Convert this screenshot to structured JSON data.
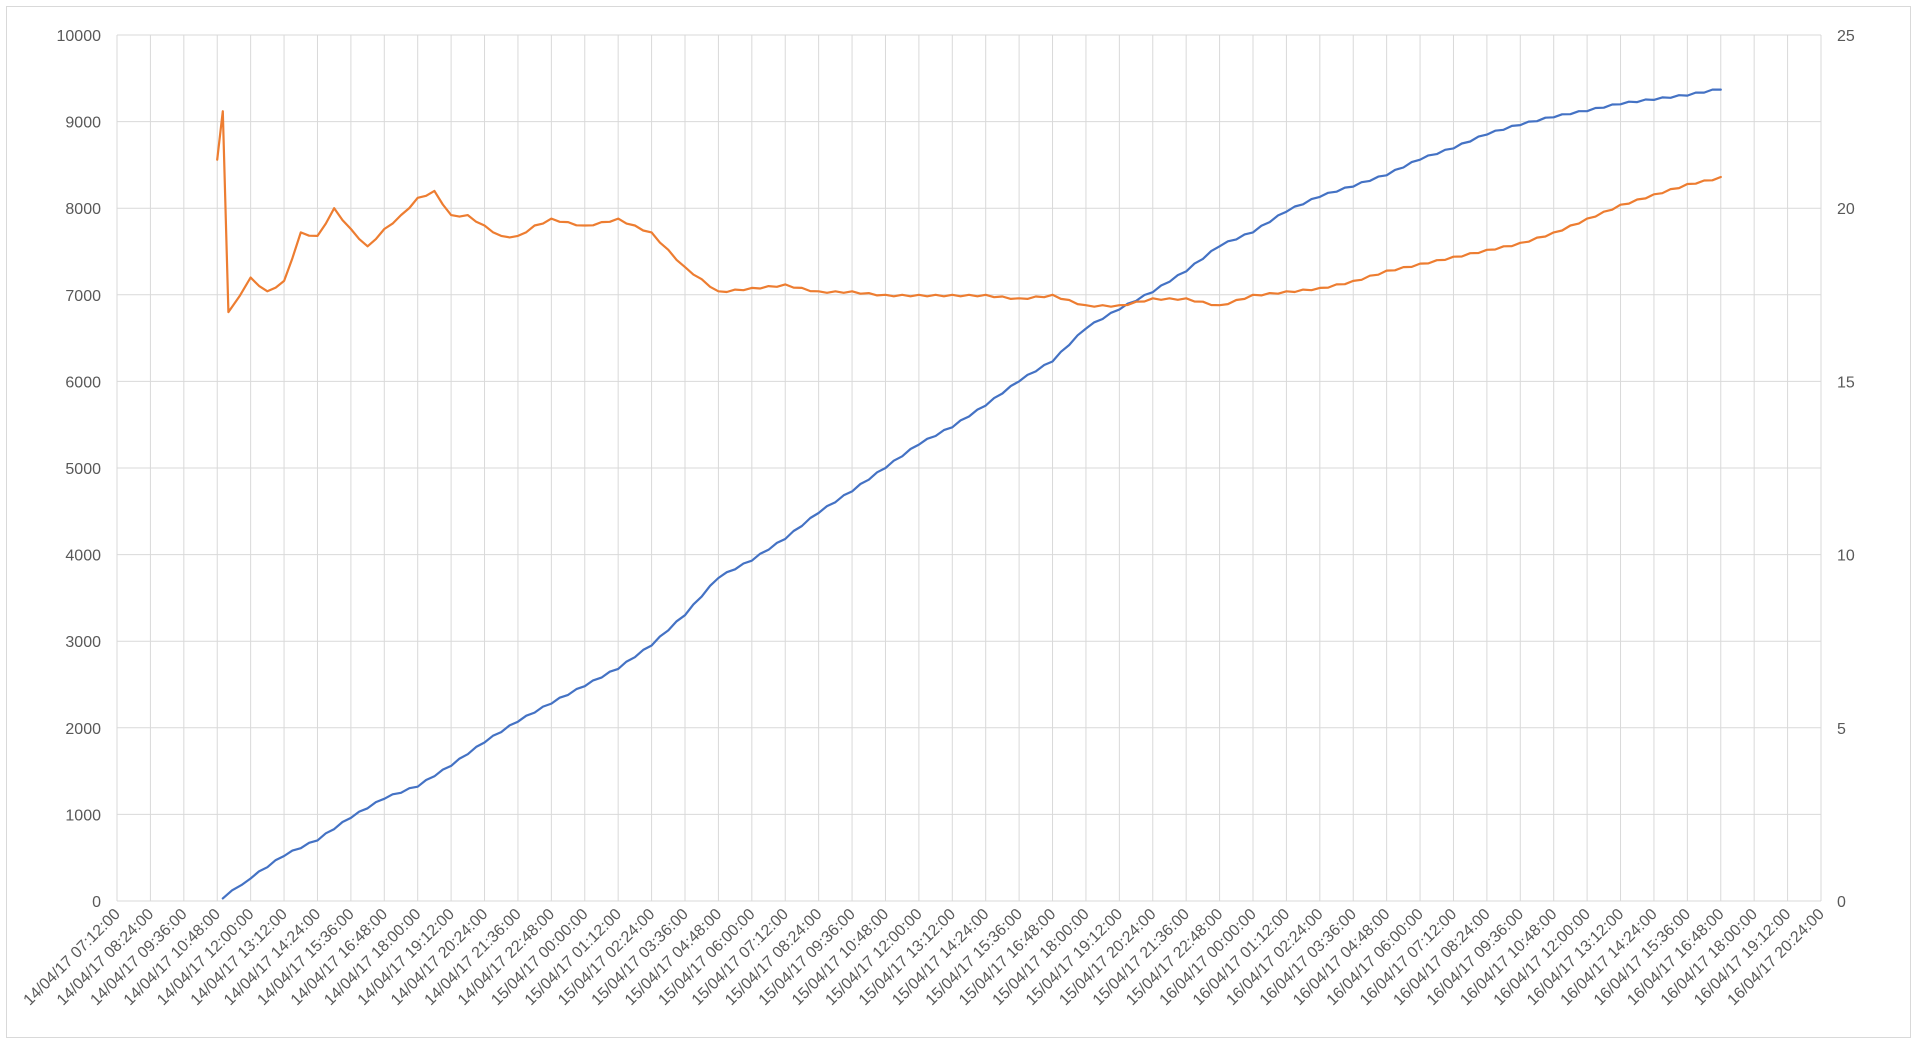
{
  "chart_data": {
    "type": "line",
    "title": "",
    "xlabel": "",
    "ylabel": "",
    "ylim": [
      0,
      10000
    ],
    "y2lim": [
      0,
      25
    ],
    "y_ticks": [
      "0",
      "1000",
      "2000",
      "3000",
      "4000",
      "5000",
      "6000",
      "7000",
      "8000",
      "9000",
      "10000"
    ],
    "y2_ticks": [
      "0",
      "5",
      "10",
      "15",
      "20",
      "25"
    ],
    "x_tick_labels": [
      "14/04/17 07:12:00",
      "14/04/17 08:24:00",
      "14/04/17 09:36:00",
      "14/04/17 10:48:00",
      "14/04/17 12:00:00",
      "14/04/17 13:12:00",
      "14/04/17 14:24:00",
      "14/04/17 15:36:00",
      "14/04/17 16:48:00",
      "14/04/17 18:00:00",
      "14/04/17 19:12:00",
      "14/04/17 20:24:00",
      "14/04/17 21:36:00",
      "14/04/17 22:48:00",
      "15/04/17 00:00:00",
      "15/04/17 01:12:00",
      "15/04/17 02:24:00",
      "15/04/17 03:36:00",
      "15/04/17 04:48:00",
      "15/04/17 06:00:00",
      "15/04/17 07:12:00",
      "15/04/17 08:24:00",
      "15/04/17 09:36:00",
      "15/04/17 10:48:00",
      "15/04/17 12:00:00",
      "15/04/17 13:12:00",
      "15/04/17 14:24:00",
      "15/04/17 15:36:00",
      "15/04/17 16:48:00",
      "15/04/17 18:00:00",
      "15/04/17 19:12:00",
      "15/04/17 20:24:00",
      "15/04/17 21:36:00",
      "15/04/17 22:48:00",
      "16/04/17 00:00:00",
      "16/04/17 01:12:00",
      "16/04/17 02:24:00",
      "16/04/17 03:36:00",
      "16/04/17 04:48:00",
      "16/04/17 06:00:00",
      "16/04/17 07:12:00",
      "16/04/17 08:24:00",
      "16/04/17 09:36:00",
      "16/04/17 10:48:00",
      "16/04/17 12:00:00",
      "16/04/17 13:12:00",
      "16/04/17 14:24:00",
      "16/04/17 15:36:00",
      "16/04/17 16:48:00",
      "16/04/17 18:00:00",
      "16/04/17 19:12:00",
      "16/04/17 20:24:00"
    ],
    "grid": true,
    "legend": "none",
    "series": [
      {
        "axis": "left",
        "color": "#4472c4",
        "points": [
          [
            "14/04/17 11:00:00",
            30
          ],
          [
            "14/04/17 12:00:00",
            260
          ],
          [
            "14/04/17 13:12:00",
            520
          ],
          [
            "14/04/17 14:24:00",
            700
          ],
          [
            "14/04/17 15:36:00",
            960
          ],
          [
            "14/04/17 16:48:00",
            1180
          ],
          [
            "14/04/17 18:00:00",
            1320
          ],
          [
            "14/04/17 19:12:00",
            1560
          ],
          [
            "14/04/17 20:24:00",
            1830
          ],
          [
            "14/04/17 21:36:00",
            2070
          ],
          [
            "14/04/17 22:48:00",
            2280
          ],
          [
            "15/04/17 00:00:00",
            2480
          ],
          [
            "15/04/17 01:12:00",
            2680
          ],
          [
            "15/04/17 02:24:00",
            2950
          ],
          [
            "15/04/17 03:36:00",
            3300
          ],
          [
            "15/04/17 04:48:00",
            3730
          ],
          [
            "15/04/17 06:00:00",
            3930
          ],
          [
            "15/04/17 07:12:00",
            4180
          ],
          [
            "15/04/17 08:24:00",
            4480
          ],
          [
            "15/04/17 09:36:00",
            4730
          ],
          [
            "15/04/17 10:48:00",
            5000
          ],
          [
            "15/04/17 12:00:00",
            5270
          ],
          [
            "15/04/17 13:12:00",
            5470
          ],
          [
            "15/04/17 14:24:00",
            5720
          ],
          [
            "15/04/17 15:36:00",
            6000
          ],
          [
            "15/04/17 16:48:00",
            6230
          ],
          [
            "15/04/17 18:00:00",
            6610
          ],
          [
            "15/04/17 19:12:00",
            6830
          ],
          [
            "15/04/17 20:24:00",
            7030
          ],
          [
            "15/04/17 21:36:00",
            7270
          ],
          [
            "15/04/17 22:48:00",
            7560
          ],
          [
            "16/04/17 00:00:00",
            7720
          ],
          [
            "16/04/17 01:12:00",
            7960
          ],
          [
            "16/04/17 02:24:00",
            8130
          ],
          [
            "16/04/17 03:36:00",
            8250
          ],
          [
            "16/04/17 04:48:00",
            8380
          ],
          [
            "16/04/17 06:00:00",
            8560
          ],
          [
            "16/04/17 07:12:00",
            8690
          ],
          [
            "16/04/17 08:24:00",
            8850
          ],
          [
            "16/04/17 09:36:00",
            8960
          ],
          [
            "16/04/17 10:48:00",
            9050
          ],
          [
            "16/04/17 12:00:00",
            9120
          ],
          [
            "16/04/17 13:12:00",
            9200
          ],
          [
            "16/04/17 14:24:00",
            9250
          ],
          [
            "16/04/17 15:36:00",
            9300
          ],
          [
            "16/04/17 16:48:00",
            9370
          ]
        ]
      },
      {
        "axis": "right",
        "color": "#ed7d31",
        "points": [
          [
            "14/04/17 10:48:00",
            21.4
          ],
          [
            "14/04/17 11:00:00",
            22.8
          ],
          [
            "14/04/17 11:12:00",
            17.0
          ],
          [
            "14/04/17 12:00:00",
            18.0
          ],
          [
            "14/04/17 12:36:00",
            17.6
          ],
          [
            "14/04/17 13:12:00",
            17.9
          ],
          [
            "14/04/17 13:48:00",
            19.3
          ],
          [
            "14/04/17 14:24:00",
            19.2
          ],
          [
            "14/04/17 15:00:00",
            20.0
          ],
          [
            "14/04/17 15:36:00",
            19.4
          ],
          [
            "14/04/17 16:12:00",
            18.9
          ],
          [
            "14/04/17 16:48:00",
            19.4
          ],
          [
            "14/04/17 17:24:00",
            19.8
          ],
          [
            "14/04/17 18:00:00",
            20.3
          ],
          [
            "14/04/17 18:36:00",
            20.5
          ],
          [
            "14/04/17 19:12:00",
            19.8
          ],
          [
            "14/04/17 19:48:00",
            19.8
          ],
          [
            "14/04/17 20:24:00",
            19.5
          ],
          [
            "14/04/17 21:00:00",
            19.2
          ],
          [
            "14/04/17 21:36:00",
            19.2
          ],
          [
            "14/04/17 22:12:00",
            19.5
          ],
          [
            "14/04/17 22:48:00",
            19.7
          ],
          [
            "15/04/17 00:00:00",
            19.5
          ],
          [
            "15/04/17 01:12:00",
            19.7
          ],
          [
            "15/04/17 02:24:00",
            19.3
          ],
          [
            "15/04/17 03:36:00",
            18.3
          ],
          [
            "15/04/17 04:48:00",
            17.6
          ],
          [
            "15/04/17 06:00:00",
            17.7
          ],
          [
            "15/04/17 07:12:00",
            17.8
          ],
          [
            "15/04/17 08:24:00",
            17.6
          ],
          [
            "15/04/17 09:36:00",
            17.6
          ],
          [
            "15/04/17 10:48:00",
            17.5
          ],
          [
            "15/04/17 12:00:00",
            17.5
          ],
          [
            "15/04/17 13:12:00",
            17.5
          ],
          [
            "15/04/17 14:24:00",
            17.5
          ],
          [
            "15/04/17 15:36:00",
            17.4
          ],
          [
            "15/04/17 16:48:00",
            17.5
          ],
          [
            "15/04/17 18:00:00",
            17.2
          ],
          [
            "15/04/17 19:12:00",
            17.2
          ],
          [
            "15/04/17 20:24:00",
            17.4
          ],
          [
            "15/04/17 21:36:00",
            17.4
          ],
          [
            "15/04/17 22:48:00",
            17.2
          ],
          [
            "16/04/17 00:00:00",
            17.5
          ],
          [
            "16/04/17 01:12:00",
            17.6
          ],
          [
            "16/04/17 02:24:00",
            17.7
          ],
          [
            "16/04/17 03:36:00",
            17.9
          ],
          [
            "16/04/17 04:48:00",
            18.2
          ],
          [
            "16/04/17 06:00:00",
            18.4
          ],
          [
            "16/04/17 07:12:00",
            18.6
          ],
          [
            "16/04/17 08:24:00",
            18.8
          ],
          [
            "16/04/17 09:36:00",
            19.0
          ],
          [
            "16/04/17 10:48:00",
            19.3
          ],
          [
            "16/04/17 12:00:00",
            19.7
          ],
          [
            "16/04/17 13:12:00",
            20.1
          ],
          [
            "16/04/17 14:24:00",
            20.4
          ],
          [
            "16/04/17 15:36:00",
            20.7
          ],
          [
            "16/04/17 16:48:00",
            20.9
          ]
        ]
      }
    ]
  }
}
